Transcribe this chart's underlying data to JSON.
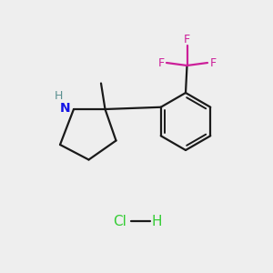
{
  "background_color": "#eeeeee",
  "bond_color": "#1a1a1a",
  "N_color": "#1414e6",
  "H_on_N_color": "#5a9090",
  "F_color": "#cc1f99",
  "Cl_color": "#33cc33",
  "H_hcl_color": "#33cc33",
  "figsize": [
    3.0,
    3.0
  ],
  "dpi": 100,
  "xlim": [
    0,
    10
  ],
  "ylim": [
    0,
    10
  ]
}
